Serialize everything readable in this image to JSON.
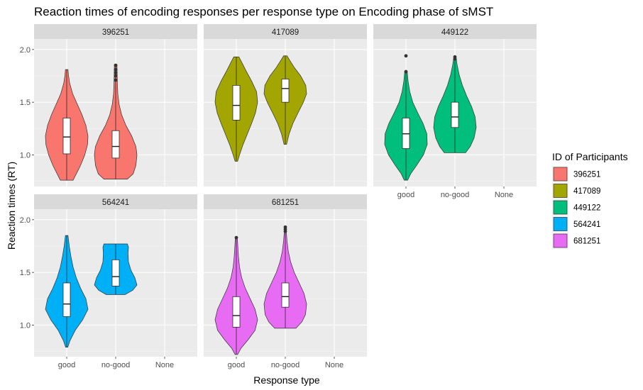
{
  "chart_data": {
    "type": "violin",
    "title": "Reaction times of encoding responses per response type on Encoding phase of sMST",
    "xlabel": "Response type",
    "ylabel": "Reaction times (RT)",
    "categories": [
      "good",
      "no-good",
      "None"
    ],
    "yticks": [
      1.0,
      1.5,
      2.0
    ],
    "ytick_labels": [
      "1.0",
      "1.5",
      "2.0"
    ],
    "ylim": [
      0.7,
      2.1
    ],
    "grid": true,
    "legend": {
      "title": "ID of Participants",
      "position": "right",
      "entries": [
        {
          "label": "396251",
          "color": "#F8766D"
        },
        {
          "label": "417089",
          "color": "#A3A500"
        },
        {
          "label": "449122",
          "color": "#00BF7D"
        },
        {
          "label": "564241",
          "color": "#00B0F6"
        },
        {
          "label": "681251",
          "color": "#E76BF3"
        }
      ]
    },
    "facets": [
      {
        "label": "396251",
        "color": "#F8766D",
        "series": [
          {
            "category": "good",
            "min": 0.76,
            "max": 1.81,
            "q1": 1.01,
            "median": 1.17,
            "q3": 1.35,
            "outliers": [],
            "density": [
              [
                0.76,
                0.3
              ],
              [
                0.82,
                0.45
              ],
              [
                0.9,
                0.65
              ],
              [
                1.0,
                0.85
              ],
              [
                1.1,
                0.98
              ],
              [
                1.18,
                1.0
              ],
              [
                1.28,
                0.9
              ],
              [
                1.38,
                0.72
              ],
              [
                1.48,
                0.5
              ],
              [
                1.58,
                0.28
              ],
              [
                1.68,
                0.14
              ],
              [
                1.76,
                0.08
              ],
              [
                1.81,
                0.06
              ]
            ]
          },
          {
            "category": "no-good",
            "min": 0.77,
            "max": 1.86,
            "q1": 0.97,
            "median": 1.08,
            "q3": 1.23,
            "outliers": [
              1.71,
              1.75,
              1.78,
              1.81,
              1.85
            ],
            "density": [
              [
                0.77,
                0.55
              ],
              [
                0.82,
                0.82
              ],
              [
                0.9,
                0.95
              ],
              [
                1.0,
                1.0
              ],
              [
                1.08,
                0.95
              ],
              [
                1.18,
                0.75
              ],
              [
                1.28,
                0.48
              ],
              [
                1.38,
                0.28
              ],
              [
                1.48,
                0.16
              ],
              [
                1.58,
                0.1
              ],
              [
                1.68,
                0.08
              ],
              [
                1.78,
                0.07
              ],
              [
                1.86,
                0.06
              ]
            ]
          }
        ]
      },
      {
        "label": "417089",
        "color": "#A3A500",
        "series": [
          {
            "category": "good",
            "min": 0.94,
            "max": 1.93,
            "q1": 1.33,
            "median": 1.47,
            "q3": 1.66,
            "outliers": [],
            "density": [
              [
                0.94,
                0.06
              ],
              [
                1.0,
                0.15
              ],
              [
                1.1,
                0.32
              ],
              [
                1.2,
                0.52
              ],
              [
                1.3,
                0.72
              ],
              [
                1.4,
                0.9
              ],
              [
                1.5,
                1.0
              ],
              [
                1.6,
                0.95
              ],
              [
                1.7,
                0.72
              ],
              [
                1.8,
                0.45
              ],
              [
                1.88,
                0.25
              ],
              [
                1.93,
                0.12
              ]
            ]
          },
          {
            "category": "no-good",
            "min": 1.1,
            "max": 1.94,
            "q1": 1.5,
            "median": 1.63,
            "q3": 1.72,
            "outliers": [],
            "density": [
              [
                1.1,
                0.06
              ],
              [
                1.2,
                0.18
              ],
              [
                1.3,
                0.36
              ],
              [
                1.4,
                0.6
              ],
              [
                1.5,
                0.85
              ],
              [
                1.58,
                1.0
              ],
              [
                1.66,
                0.96
              ],
              [
                1.75,
                0.72
              ],
              [
                1.83,
                0.42
              ],
              [
                1.9,
                0.2
              ],
              [
                1.94,
                0.08
              ]
            ]
          }
        ]
      },
      {
        "label": "449122",
        "color": "#00BF7D",
        "series": [
          {
            "category": "good",
            "min": 0.76,
            "max": 1.79,
            "q1": 1.06,
            "median": 1.2,
            "q3": 1.35,
            "outliers": [
              1.79,
              1.94
            ],
            "density": [
              [
                0.76,
                0.08
              ],
              [
                0.82,
                0.22
              ],
              [
                0.9,
                0.5
              ],
              [
                1.0,
                0.82
              ],
              [
                1.1,
                1.0
              ],
              [
                1.2,
                0.98
              ],
              [
                1.3,
                0.8
              ],
              [
                1.4,
                0.55
              ],
              [
                1.5,
                0.32
              ],
              [
                1.6,
                0.18
              ],
              [
                1.7,
                0.1
              ],
              [
                1.79,
                0.06
              ]
            ]
          },
          {
            "category": "no-good",
            "min": 1.02,
            "max": 1.92,
            "q1": 1.26,
            "median": 1.36,
            "q3": 1.5,
            "outliers": [
              1.91,
              1.93
            ],
            "density": [
              [
                1.02,
                0.5
              ],
              [
                1.08,
                0.72
              ],
              [
                1.16,
                0.9
              ],
              [
                1.26,
                1.0
              ],
              [
                1.36,
                0.95
              ],
              [
                1.46,
                0.78
              ],
              [
                1.56,
                0.55
              ],
              [
                1.66,
                0.35
              ],
              [
                1.76,
                0.2
              ],
              [
                1.86,
                0.1
              ],
              [
                1.92,
                0.06
              ]
            ]
          }
        ]
      },
      {
        "label": "564241",
        "color": "#00B0F6",
        "series": [
          {
            "category": "good",
            "min": 0.79,
            "max": 1.85,
            "q1": 1.08,
            "median": 1.2,
            "q3": 1.4,
            "outliers": [],
            "density": [
              [
                0.79,
                0.05
              ],
              [
                0.85,
                0.15
              ],
              [
                0.95,
                0.4
              ],
              [
                1.05,
                0.75
              ],
              [
                1.15,
                1.0
              ],
              [
                1.25,
                0.9
              ],
              [
                1.35,
                0.65
              ],
              [
                1.45,
                0.45
              ],
              [
                1.55,
                0.3
              ],
              [
                1.65,
                0.2
              ],
              [
                1.75,
                0.12
              ],
              [
                1.85,
                0.06
              ]
            ]
          },
          {
            "category": "no-good",
            "min": 1.29,
            "max": 1.77,
            "q1": 1.37,
            "median": 1.46,
            "q3": 1.62,
            "outliers": [],
            "density": [
              [
                1.29,
                0.45
              ],
              [
                1.33,
                0.8
              ],
              [
                1.38,
                1.0
              ],
              [
                1.45,
                0.9
              ],
              [
                1.52,
                0.72
              ],
              [
                1.6,
                0.6
              ],
              [
                1.68,
                0.58
              ],
              [
                1.74,
                0.6
              ],
              [
                1.77,
                0.55
              ]
            ]
          }
        ]
      },
      {
        "label": "681251",
        "color": "#E76BF3",
        "series": [
          {
            "category": "good",
            "min": 0.72,
            "max": 1.82,
            "q1": 0.98,
            "median": 1.09,
            "q3": 1.27,
            "outliers": [
              1.83
            ],
            "density": [
              [
                0.72,
                0.06
              ],
              [
                0.78,
                0.22
              ],
              [
                0.86,
                0.55
              ],
              [
                0.95,
                0.88
              ],
              [
                1.05,
                1.0
              ],
              [
                1.15,
                0.88
              ],
              [
                1.25,
                0.65
              ],
              [
                1.35,
                0.42
              ],
              [
                1.45,
                0.25
              ],
              [
                1.55,
                0.15
              ],
              [
                1.65,
                0.1
              ],
              [
                1.75,
                0.07
              ],
              [
                1.82,
                0.05
              ]
            ]
          },
          {
            "category": "no-good",
            "min": 0.97,
            "max": 1.88,
            "q1": 1.17,
            "median": 1.27,
            "q3": 1.4,
            "outliers": [
              1.89,
              1.91,
              1.93
            ],
            "density": [
              [
                0.97,
                0.5
              ],
              [
                1.03,
                0.78
              ],
              [
                1.1,
                0.95
              ],
              [
                1.2,
                1.0
              ],
              [
                1.3,
                0.88
              ],
              [
                1.4,
                0.65
              ],
              [
                1.5,
                0.42
              ],
              [
                1.6,
                0.25
              ],
              [
                1.7,
                0.14
              ],
              [
                1.8,
                0.08
              ],
              [
                1.88,
                0.05
              ]
            ]
          }
        ]
      }
    ]
  }
}
